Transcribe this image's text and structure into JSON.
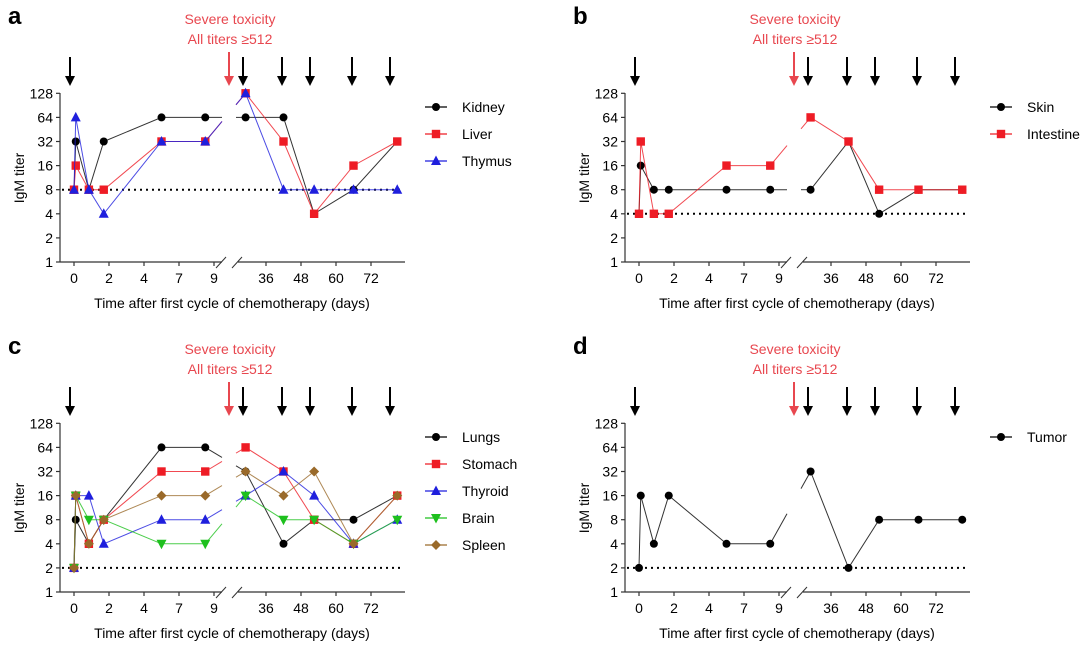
{
  "figure": {
    "annotation_line1": "Severe toxicity",
    "annotation_line2": "All titers ≥512",
    "annotation_color": "#e8474f",
    "arrow_color": "#000000"
  },
  "chart_data": [
    {
      "panel": "a",
      "type": "line",
      "title": "",
      "xlabel": "Time after first cycle of chemotherapy (days)",
      "ylabel": "IgM titer",
      "yscale": "log2",
      "ylim": [
        1,
        128
      ],
      "yticks": [
        1,
        2,
        4,
        8,
        16,
        32,
        64,
        128
      ],
      "xticks_before_break": [
        "0",
        "2",
        "4",
        "7",
        "9"
      ],
      "xticks_after_break": [
        "36",
        "48",
        "60",
        "72"
      ],
      "x_axis_break": "between 9 and 36",
      "threshold_line": 8,
      "chemo_arrows_days": [
        0,
        30,
        42,
        51,
        64,
        75
      ],
      "toxicity_arrow": "just before break end",
      "x_before": [
        0,
        0.1,
        0.85,
        1.7,
        5.5,
        8.5
      ],
      "x_after": [
        29,
        42,
        52.5,
        66,
        81
      ],
      "legend": "right",
      "series": [
        {
          "name": "Kidney",
          "color": "#000000",
          "marker": "circle",
          "before": [
            8,
            32,
            8,
            32,
            64,
            64
          ],
          "after": [
            64,
            64,
            4,
            8,
            32
          ]
        },
        {
          "name": "Liver",
          "color": "#ee1c25",
          "marker": "square",
          "before": [
            8,
            16,
            8,
            8,
            32,
            32
          ],
          "after": [
            128,
            32,
            4,
            16,
            32
          ]
        },
        {
          "name": "Thymus",
          "color": "#1f1fdd",
          "marker": "triangle-up",
          "before": [
            8,
            64,
            8,
            4,
            32,
            32
          ],
          "after": [
            128,
            8,
            8,
            8,
            8
          ]
        }
      ]
    },
    {
      "panel": "b",
      "type": "line",
      "title": "",
      "xlabel": "Time after first cycle of chemotherapy (days)",
      "ylabel": "IgM titer",
      "yscale": "log2",
      "ylim": [
        1,
        128
      ],
      "yticks": [
        1,
        2,
        4,
        8,
        16,
        32,
        64,
        128
      ],
      "xticks_before_break": [
        "0",
        "2",
        "4",
        "7",
        "9"
      ],
      "xticks_after_break": [
        "36",
        "48",
        "60",
        "72"
      ],
      "x_axis_break": "between 9 and 36",
      "threshold_line": 4,
      "chemo_arrows_days": [
        0,
        30,
        42,
        51,
        64,
        75
      ],
      "x_before": [
        0,
        0.1,
        0.85,
        1.7,
        5.5,
        8.5
      ],
      "x_after": [
        29,
        42,
        52.5,
        66,
        81
      ],
      "legend": "right",
      "series": [
        {
          "name": "Skin",
          "color": "#000000",
          "marker": "circle",
          "before": [
            4,
            16,
            8,
            8,
            8,
            8
          ],
          "after": [
            8,
            32,
            4,
            8,
            8
          ]
        },
        {
          "name": "Intestine",
          "color": "#ee1c25",
          "marker": "square",
          "before": [
            4,
            32,
            4,
            4,
            16,
            16
          ],
          "after": [
            64,
            32,
            8,
            8,
            8
          ]
        }
      ]
    },
    {
      "panel": "c",
      "type": "line",
      "title": "",
      "xlabel": "Time after first cycle of chemotherapy (days)",
      "ylabel": "IgM titer",
      "yscale": "log2",
      "ylim": [
        1,
        128
      ],
      "yticks": [
        1,
        2,
        4,
        8,
        16,
        32,
        64,
        128
      ],
      "xticks_before_break": [
        "0",
        "2",
        "4",
        "7",
        "9"
      ],
      "xticks_after_break": [
        "36",
        "48",
        "60",
        "72"
      ],
      "x_axis_break": "between 9 and 36",
      "threshold_line": 2,
      "chemo_arrows_days": [
        0,
        30,
        42,
        51,
        64,
        75
      ],
      "x_before": [
        0,
        0.1,
        0.85,
        1.7,
        5.5,
        8.5
      ],
      "x_after": [
        29,
        42,
        52.5,
        66,
        81
      ],
      "legend": "right",
      "series": [
        {
          "name": "Lungs",
          "color": "#000000",
          "marker": "circle",
          "before": [
            2,
            8,
            4,
            8,
            64,
            64
          ],
          "after": [
            32,
            4,
            8,
            8,
            16
          ]
        },
        {
          "name": "Stomach",
          "color": "#ee1c25",
          "marker": "square",
          "before": [
            2,
            16,
            4,
            8,
            32,
            32
          ],
          "after": [
            64,
            32,
            8,
            4,
            16
          ]
        },
        {
          "name": "Thyroid",
          "color": "#1f1fdd",
          "marker": "triangle-up",
          "before": [
            2,
            16,
            16,
            4,
            8,
            8
          ],
          "after": [
            16,
            32,
            16,
            4,
            8
          ]
        },
        {
          "name": "Brain",
          "color": "#1ec01e",
          "marker": "triangle-down",
          "before": [
            2,
            16,
            8,
            8,
            4,
            4
          ],
          "after": [
            16,
            8,
            8,
            4,
            8
          ]
        },
        {
          "name": "Spleen",
          "color": "#9a6a2a",
          "marker": "diamond",
          "before": [
            2,
            16,
            4,
            8,
            16,
            16
          ],
          "after": [
            32,
            16,
            32,
            4,
            16
          ]
        }
      ]
    },
    {
      "panel": "d",
      "type": "line",
      "title": "",
      "xlabel": "Time after first cycle of chemotherapy (days)",
      "ylabel": "IgM titer",
      "yscale": "log2",
      "ylim": [
        1,
        128
      ],
      "yticks": [
        1,
        2,
        4,
        8,
        16,
        32,
        64,
        128
      ],
      "xticks_before_break": [
        "0",
        "2",
        "4",
        "7",
        "9"
      ],
      "xticks_after_break": [
        "36",
        "48",
        "60",
        "72"
      ],
      "x_axis_break": "between 9 and 36",
      "threshold_line": 2,
      "chemo_arrows_days": [
        0,
        30,
        42,
        51,
        64,
        75
      ],
      "x_before": [
        0,
        0.1,
        0.85,
        1.7,
        5.5,
        8.5
      ],
      "x_after": [
        29,
        42,
        52.5,
        66,
        81
      ],
      "legend": "right",
      "series": [
        {
          "name": "Tumor",
          "color": "#000000",
          "marker": "circle",
          "before": [
            2,
            16,
            4,
            16,
            4,
            4
          ],
          "after": [
            32,
            2,
            8,
            8,
            8
          ]
        }
      ]
    }
  ]
}
